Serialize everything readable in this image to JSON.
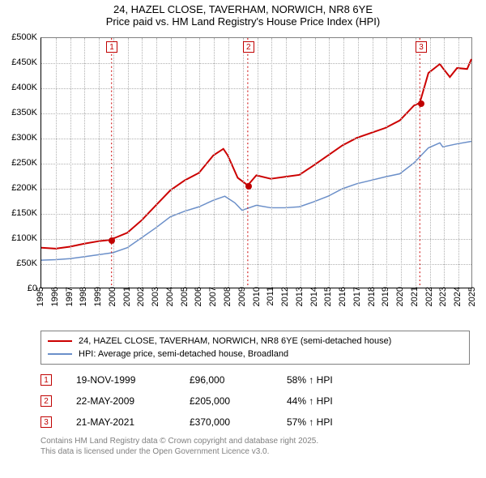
{
  "title_line1": "24, HAZEL CLOSE, TAVERHAM, NORWICH, NR8 6YE",
  "title_line2": "Price paid vs. HM Land Registry's House Price Index (HPI)",
  "chart": {
    "type": "line",
    "background_color": "#ffffff",
    "grid_color": "#b0b0b0",
    "axis_color": "#000000",
    "label_fontsize": 11,
    "x": {
      "min": 1995,
      "max": 2025,
      "ticks": [
        1995,
        1996,
        1997,
        1998,
        1999,
        2000,
        2001,
        2002,
        2003,
        2004,
        2005,
        2006,
        2007,
        2008,
        2009,
        2010,
        2011,
        2012,
        2013,
        2014,
        2015,
        2016,
        2017,
        2018,
        2019,
        2020,
        2021,
        2022,
        2023,
        2024,
        2025
      ]
    },
    "y": {
      "min": 0,
      "max": 500,
      "ticks": [
        0,
        50,
        100,
        150,
        200,
        250,
        300,
        350,
        400,
        450,
        500
      ],
      "tick_labels": [
        "£0",
        "£50K",
        "£100K",
        "£150K",
        "£200K",
        "£250K",
        "£300K",
        "£350K",
        "£400K",
        "£450K",
        "£500K"
      ]
    },
    "series": [
      {
        "name": "24, HAZEL CLOSE, TAVERHAM, NORWICH, NR8 6YE (semi-detached house)",
        "color": "#cc0000",
        "line_width": 2,
        "data": [
          [
            1995,
            80
          ],
          [
            1996,
            78
          ],
          [
            1997,
            82
          ],
          [
            1998,
            88
          ],
          [
            1999,
            93
          ],
          [
            1999.9,
            96
          ],
          [
            2000,
            98
          ],
          [
            2001,
            110
          ],
          [
            2002,
            135
          ],
          [
            2003,
            165
          ],
          [
            2004,
            195
          ],
          [
            2005,
            215
          ],
          [
            2006,
            230
          ],
          [
            2007,
            265
          ],
          [
            2007.7,
            278
          ],
          [
            2008,
            265
          ],
          [
            2008.7,
            220
          ],
          [
            2009.4,
            205
          ],
          [
            2010,
            225
          ],
          [
            2011,
            218
          ],
          [
            2012,
            222
          ],
          [
            2013,
            226
          ],
          [
            2014,
            245
          ],
          [
            2015,
            265
          ],
          [
            2016,
            285
          ],
          [
            2017,
            300
          ],
          [
            2018,
            310
          ],
          [
            2019,
            320
          ],
          [
            2020,
            335
          ],
          [
            2021,
            365
          ],
          [
            2021.4,
            370
          ],
          [
            2022,
            430
          ],
          [
            2022.8,
            448
          ],
          [
            2023,
            440
          ],
          [
            2023.5,
            422
          ],
          [
            2024,
            440
          ],
          [
            2024.7,
            438
          ],
          [
            2025,
            458
          ]
        ]
      },
      {
        "name": "HPI: Average price, semi-detached house, Broadland",
        "color": "#6b8fc9",
        "line_width": 1.5,
        "data": [
          [
            1995,
            55
          ],
          [
            1996,
            56
          ],
          [
            1997,
            58
          ],
          [
            1998,
            62
          ],
          [
            1999,
            66
          ],
          [
            2000,
            70
          ],
          [
            2001,
            80
          ],
          [
            2002,
            100
          ],
          [
            2003,
            120
          ],
          [
            2004,
            142
          ],
          [
            2005,
            153
          ],
          [
            2006,
            162
          ],
          [
            2007,
            175
          ],
          [
            2007.8,
            183
          ],
          [
            2008.5,
            170
          ],
          [
            2009,
            155
          ],
          [
            2010,
            165
          ],
          [
            2011,
            160
          ],
          [
            2012,
            160
          ],
          [
            2013,
            162
          ],
          [
            2014,
            172
          ],
          [
            2015,
            183
          ],
          [
            2016,
            198
          ],
          [
            2017,
            208
          ],
          [
            2018,
            215
          ],
          [
            2019,
            222
          ],
          [
            2020,
            228
          ],
          [
            2021,
            250
          ],
          [
            2022,
            280
          ],
          [
            2022.8,
            290
          ],
          [
            2023,
            282
          ],
          [
            2024,
            288
          ],
          [
            2025,
            293
          ]
        ]
      }
    ],
    "event_markers": [
      {
        "n": "1",
        "x": 1999.9,
        "y": 96
      },
      {
        "n": "2",
        "x": 2009.4,
        "y": 205
      },
      {
        "n": "3",
        "x": 2021.4,
        "y": 370
      }
    ]
  },
  "legend": [
    {
      "color": "#cc0000",
      "label": "24, HAZEL CLOSE, TAVERHAM, NORWICH, NR8 6YE (semi-detached house)"
    },
    {
      "color": "#6b8fc9",
      "label": "HPI: Average price, semi-detached house, Broadland"
    }
  ],
  "events": [
    {
      "n": "1",
      "date": "19-NOV-1999",
      "price": "£96,000",
      "pct": "58% ↑ HPI"
    },
    {
      "n": "2",
      "date": "22-MAY-2009",
      "price": "£205,000",
      "pct": "44% ↑ HPI"
    },
    {
      "n": "3",
      "date": "21-MAY-2021",
      "price": "£370,000",
      "pct": "57% ↑ HPI"
    }
  ],
  "footer_line1": "Contains HM Land Registry data © Crown copyright and database right 2025.",
  "footer_line2": "This data is licensed under the Open Government Licence v3.0."
}
